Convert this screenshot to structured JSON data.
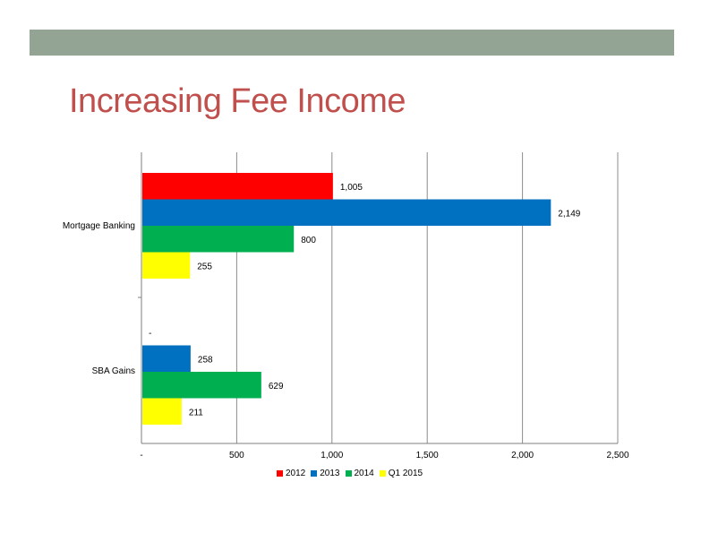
{
  "slide": {
    "title": "Increasing Fee Income",
    "band_color": "#93A394",
    "title_color": "#C0504D"
  },
  "chart_data": {
    "type": "bar",
    "orientation": "horizontal",
    "categories": [
      "Mortgage Banking",
      "SBA Gains"
    ],
    "series": [
      {
        "name": "2012",
        "color": "#FF0000",
        "values": [
          1005,
          0
        ],
        "labels": [
          "1,005",
          "-"
        ]
      },
      {
        "name": "2013",
        "color": "#0070C0",
        "values": [
          2149,
          258
        ],
        "labels": [
          "2,149",
          "258"
        ]
      },
      {
        "name": "2014",
        "color": "#00B050",
        "values": [
          800,
          629
        ],
        "labels": [
          "800",
          "629"
        ]
      },
      {
        "name": "Q1 2015",
        "color": "#FFFF00",
        "values": [
          255,
          211
        ],
        "labels": [
          "255",
          "211"
        ]
      }
    ],
    "xlim": [
      0,
      2500
    ],
    "xticks": [
      0,
      500,
      1000,
      1500,
      2000,
      2500
    ],
    "xtick_labels": [
      "-",
      "500",
      "1,000",
      "1,500",
      "2,000",
      "2,500"
    ],
    "grid": true,
    "legend": "bottom"
  }
}
